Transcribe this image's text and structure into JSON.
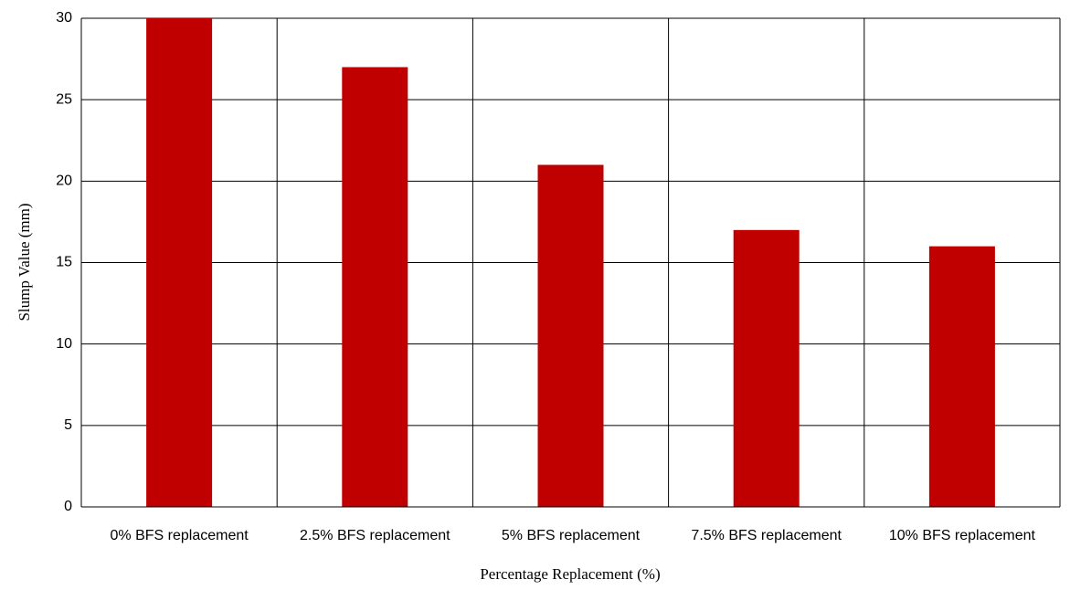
{
  "chart_data": {
    "type": "bar",
    "x_label": "Percentage Replacement (%)",
    "y_label": "Slump Value (mm)",
    "categories": [
      "0% BFS replacement",
      "2.5% BFS replacement",
      "5% BFS replacement",
      "7.5% BFS replacement",
      "10% BFS replacement"
    ],
    "values": [
      30,
      27,
      21,
      17,
      16
    ],
    "color": "#c00000",
    "ylim": [
      0,
      30
    ],
    "yticks": [
      0,
      5,
      10,
      15,
      20,
      25,
      30
    ],
    "grid": true
  }
}
